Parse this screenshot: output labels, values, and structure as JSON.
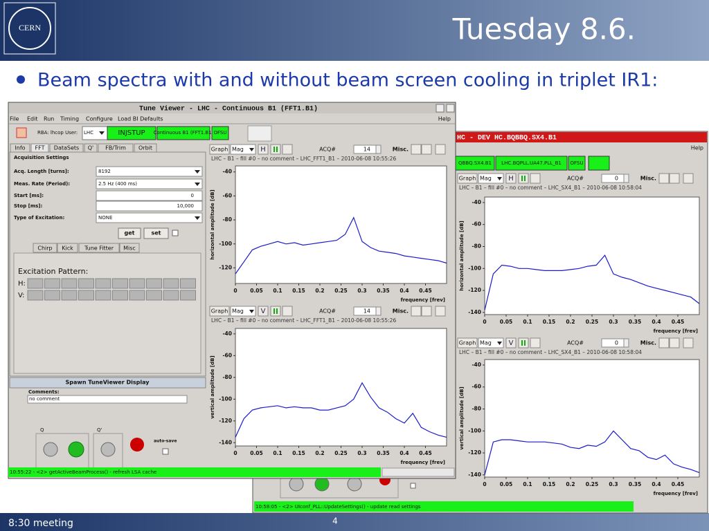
{
  "slide": {
    "title": "Tuesday 8.6.",
    "logo": "CERN",
    "bullet": "Beam spectra with and without beam screen cooling in triplet IR1:",
    "footer": "8:30 meeting",
    "page": "4"
  },
  "window_left": {
    "title": "Tune Viewer - LHC - Continuous B1 (FFT1.B1)",
    "menu": [
      "File",
      "Edit",
      "Run",
      "Timing",
      "Configure",
      "Load BI Defaults"
    ],
    "help": "Help",
    "rba": "RBA: lhcop User:",
    "accelerator": "LHC",
    "toolbar": [
      "INJSTUP",
      "Continuous B1 (FFT1.B1)",
      "OFSU"
    ],
    "tabs": [
      "Info",
      "FFT",
      "DataSets",
      "Q'",
      "FB/Trim",
      "Orbit"
    ],
    "section": "Acquisition Settings",
    "fields": [
      {
        "label": "Acq. Length [turns]:",
        "value": "8192"
      },
      {
        "label": "Meas. Rate (Period):",
        "value": "2.5 Hz (400 ms)"
      },
      {
        "label": "Start [ms]:",
        "value": "0"
      },
      {
        "label": "Stop [ms]:",
        "value": "10,000"
      },
      {
        "label": "Type of Excitation:",
        "value": "NONE"
      }
    ],
    "buttons": [
      "get",
      "set"
    ],
    "subtabs": [
      "Chirp",
      "Kick",
      "Tune Fitter",
      "Misc"
    ],
    "excitation": "Excitation Pattern:",
    "h": "H:",
    "v": "V:",
    "spawn": "Spawn TuneViewer Display",
    "comments": "Comments:",
    "comment_value": "no comment",
    "q": "Q",
    "qp": "Q'",
    "autosave": "auto-save",
    "status": "10:55:22 - <2> getActiveBeamProcess() - refresh LSA cache"
  },
  "window_right": {
    "title": "HC - DEV HC.BQBBQ.SX4.B1",
    "help": "Help",
    "toolbar": [
      "QBBQ.SX4.B1",
      "LHC.BQPLL.UA47.PLL_B1",
      "OFSU"
    ],
    "status": "10:58:05 - <2> UIconf_PLL::UpdateSettings() - update read settings"
  },
  "chart_data": [
    {
      "type": "line",
      "toolbar": {
        "graph": "Graph",
        "mode": "Mag",
        "plane": "H",
        "acq_label": "ACQ#",
        "acq": "14",
        "misc": "Misc."
      },
      "subtitle": "LHC – B1 – fill #0 – no comment – LHC_FFT1_B1 – 2010-06-08 10:55:26",
      "xlabel": "frequency [frev]",
      "ylabel": "horizontal amplitude [dB]",
      "color": "#1a1acc",
      "x": [
        0,
        0.02,
        0.04,
        0.06,
        0.08,
        0.1,
        0.12,
        0.14,
        0.16,
        0.18,
        0.2,
        0.22,
        0.24,
        0.26,
        0.28,
        0.3,
        0.32,
        0.34,
        0.36,
        0.38,
        0.4,
        0.42,
        0.44,
        0.46,
        0.48,
        0.5
      ],
      "values": [
        -125,
        -115,
        -105,
        -102,
        -100,
        -98,
        -100,
        -99,
        -101,
        -100,
        -99,
        -98,
        -97,
        -92,
        -78,
        -98,
        -103,
        -106,
        -107,
        -108,
        -110,
        -111,
        -112,
        -113,
        -114,
        -116
      ],
      "xlim": [
        0,
        0.5
      ],
      "ylim": [
        -133,
        -35
      ],
      "xticks": [
        0,
        0.05,
        0.1,
        0.15,
        0.2,
        0.25,
        0.3,
        0.35,
        0.4,
        0.45
      ],
      "yticks": [
        -40,
        -60,
        -80,
        -100,
        -120
      ]
    },
    {
      "type": "line",
      "toolbar": {
        "graph": "Graph",
        "mode": "Mag",
        "plane": "V",
        "acq_label": "ACQ#",
        "acq": "14",
        "misc": "Misc."
      },
      "subtitle": "LHC – B1 – fill #0 – no comment – LHC_FFT1_B1 – 2010-06-08 10:55:26",
      "xlabel": "frequency [frev]",
      "ylabel": "vertical amplitude [dB]",
      "color": "#1a1acc",
      "x": [
        0,
        0.02,
        0.04,
        0.06,
        0.08,
        0.1,
        0.12,
        0.14,
        0.16,
        0.18,
        0.2,
        0.22,
        0.24,
        0.26,
        0.28,
        0.3,
        0.32,
        0.34,
        0.36,
        0.38,
        0.4,
        0.42,
        0.44,
        0.46,
        0.48,
        0.5
      ],
      "values": [
        -135,
        -118,
        -110,
        -108,
        -107,
        -106,
        -108,
        -107,
        -108,
        -108,
        -110,
        -110,
        -108,
        -106,
        -100,
        -85,
        -98,
        -108,
        -112,
        -118,
        -122,
        -113,
        -126,
        -130,
        -133,
        -135
      ],
      "xlim": [
        0,
        0.5
      ],
      "ylim": [
        -143,
        -35
      ],
      "xticks": [
        0,
        0.05,
        0.1,
        0.15,
        0.2,
        0.25,
        0.3,
        0.35,
        0.4,
        0.45
      ],
      "yticks": [
        -40,
        -60,
        -80,
        -100,
        -120,
        -140
      ]
    },
    {
      "type": "line",
      "toolbar": {
        "graph": "Graph",
        "mode": "Mag",
        "plane": "H",
        "acq_label": "ACQ#",
        "acq": "0",
        "misc": "Misc."
      },
      "subtitle": "LHC – B1 – fill #0 – no comment – LHC_SX4_B1 – 2010-06-08 10:58:04",
      "xlabel": "frequency [frev]",
      "ylabel": "horizontal amplitude [dB]",
      "color": "#1a1acc",
      "x": [
        0,
        0.02,
        0.04,
        0.06,
        0.08,
        0.1,
        0.12,
        0.14,
        0.16,
        0.18,
        0.2,
        0.22,
        0.24,
        0.26,
        0.28,
        0.3,
        0.32,
        0.34,
        0.36,
        0.38,
        0.4,
        0.42,
        0.44,
        0.46,
        0.48,
        0.5
      ],
      "values": [
        -138,
        -105,
        -97,
        -98,
        -100,
        -100,
        -101,
        -102,
        -102,
        -102,
        -101,
        -100,
        -98,
        -97,
        -88,
        -105,
        -108,
        -110,
        -113,
        -116,
        -118,
        -120,
        -122,
        -124,
        -126,
        -132
      ],
      "xlim": [
        0,
        0.5
      ],
      "ylim": [
        -142,
        -35
      ],
      "xticks": [
        0,
        0.05,
        0.1,
        0.15,
        0.2,
        0.25,
        0.3,
        0.35,
        0.4,
        0.45
      ],
      "yticks": [
        -40,
        -60,
        -80,
        -100,
        -120,
        -140
      ]
    },
    {
      "type": "line",
      "toolbar": {
        "graph": "Graph",
        "mode": "Mag",
        "plane": "V",
        "acq_label": "ACQ#",
        "acq": "0",
        "misc": "Misc."
      },
      "subtitle": "LHC – B1 – fill #0 – no comment – LHC_SX4_B1 – 2010-06-08 10:58:04",
      "xlabel": "frequency [frev]",
      "ylabel": "vertical amplitude [dB]",
      "color": "#1a1acc",
      "x": [
        0,
        0.02,
        0.04,
        0.06,
        0.08,
        0.1,
        0.12,
        0.14,
        0.16,
        0.18,
        0.2,
        0.22,
        0.24,
        0.26,
        0.28,
        0.3,
        0.32,
        0.34,
        0.36,
        0.38,
        0.4,
        0.42,
        0.44,
        0.46,
        0.48,
        0.5
      ],
      "values": [
        -140,
        -110,
        -108,
        -108,
        -109,
        -110,
        -110,
        -110,
        -111,
        -112,
        -115,
        -116,
        -113,
        -114,
        -110,
        -100,
        -108,
        -116,
        -118,
        -124,
        -126,
        -122,
        -130,
        -133,
        -135,
        -138
      ],
      "xlim": [
        0,
        0.5
      ],
      "ylim": [
        -142,
        -35
      ],
      "xticks": [
        0,
        0.05,
        0.1,
        0.15,
        0.2,
        0.25,
        0.3,
        0.35,
        0.4,
        0.45
      ],
      "yticks": [
        -40,
        -60,
        -80,
        -100,
        -120,
        -140
      ]
    }
  ]
}
